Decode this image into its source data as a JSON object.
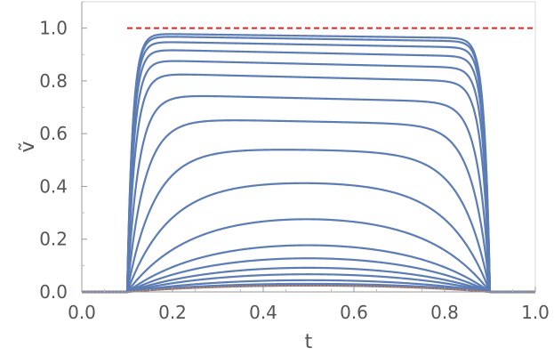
{
  "chart_data": {
    "type": "line",
    "xlabel": "t",
    "ylabel": "ṽ",
    "xlim": [
      0.0,
      1.0
    ],
    "ylim": [
      0.0,
      1.1
    ],
    "x_ticks": [
      "0.0",
      "0.2",
      "0.4",
      "0.6",
      "0.8",
      "1.0"
    ],
    "y_ticks": [
      "0.0",
      "0.2",
      "0.4",
      "0.6",
      "0.8",
      "1.0"
    ],
    "grid": false,
    "reference_line": {
      "y": 1.0,
      "style": "dashed",
      "color": "#e8231d"
    },
    "pulse": {
      "start": 0.1,
      "end": 0.9
    },
    "series_color": "#5b7cb5",
    "lower_bound_color": "#e07b2e",
    "plateau_levels": [
      0.04,
      0.05,
      0.07,
      0.1,
      0.13,
      0.17,
      0.22,
      0.31,
      0.43,
      0.55,
      0.66,
      0.75,
      0.83,
      0.88,
      0.92,
      0.95,
      0.97,
      0.98
    ]
  }
}
